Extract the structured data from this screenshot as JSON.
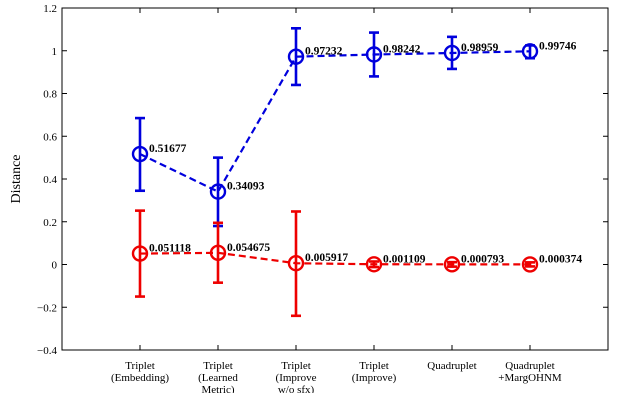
{
  "chart_data": {
    "type": "line",
    "ylabel": "Distance",
    "xlabel": "",
    "ylim": [
      -0.4,
      1.2
    ],
    "yticks": [
      "−0.4",
      "−0.2",
      "0",
      "0.2",
      "0.4",
      "0.6",
      "0.8",
      "1",
      "1.2"
    ],
    "categories": [
      [
        "Triplet",
        "(Embedding)"
      ],
      [
        "Triplet",
        "(Learned",
        "Metric)"
      ],
      [
        "Triplet",
        "(Improve",
        "w/o sfx)"
      ],
      [
        "Triplet",
        "(Improve)"
      ],
      [
        "Quadruplet"
      ],
      [
        "Quadruplet",
        "+MargOHNM"
      ]
    ],
    "series": [
      {
        "color": "#0000dd",
        "values": [
          0.51677,
          0.34093,
          0.97232,
          0.98242,
          0.98959,
          0.99746
        ],
        "err_low": [
          0.345,
          0.18,
          0.84,
          0.88,
          0.915,
          0.965
        ],
        "err_high": [
          0.685,
          0.5,
          1.105,
          1.085,
          1.065,
          1.025
        ],
        "labels": [
          "0.51677",
          "0.34093",
          "0.97232",
          "0.98242",
          "0.98959",
          "0.99746"
        ]
      },
      {
        "color": "#ee0000",
        "values": [
          0.051118,
          0.054675,
          0.005917,
          0.001109,
          0.000793,
          0.000374
        ],
        "err_low": [
          -0.15,
          -0.085,
          -0.24,
          -0.012,
          -0.01,
          -0.009
        ],
        "err_high": [
          0.252,
          0.195,
          0.248,
          0.014,
          0.011,
          0.01
        ],
        "labels": [
          "0.051118",
          "0.054675",
          "0.005917",
          "0.001109",
          "0.000793",
          "0.000374"
        ]
      }
    ],
    "grid": false,
    "legend": "none"
  }
}
